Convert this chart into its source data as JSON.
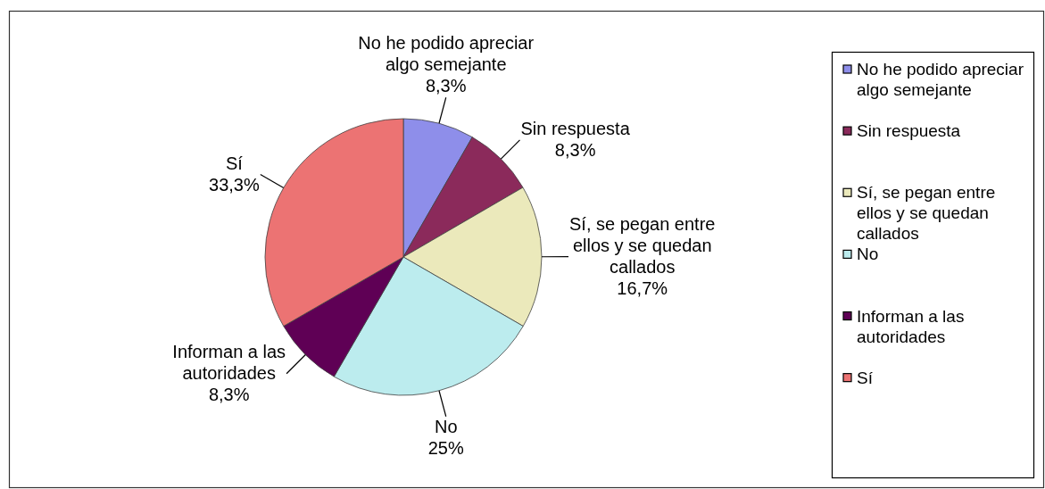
{
  "chart_data": {
    "type": "pie",
    "categories": [
      "No he podido apreciar algo semejante",
      "Sin respuesta",
      "Sí, se pegan entre ellos y se quedan callados",
      "No",
      "Informan a las autoridades",
      "Sí"
    ],
    "values": [
      8.3,
      8.3,
      16.7,
      25,
      8.3,
      33.3
    ],
    "value_labels": [
      "8,3%",
      "8,3%",
      "16,7%",
      "25%",
      "8,3%",
      "33,3%"
    ],
    "colors": [
      "#8e8eea",
      "#8b2a5b",
      "#ebe9bb",
      "#bcecee",
      "#5f0055",
      "#ec7373"
    ],
    "legend": "right"
  }
}
